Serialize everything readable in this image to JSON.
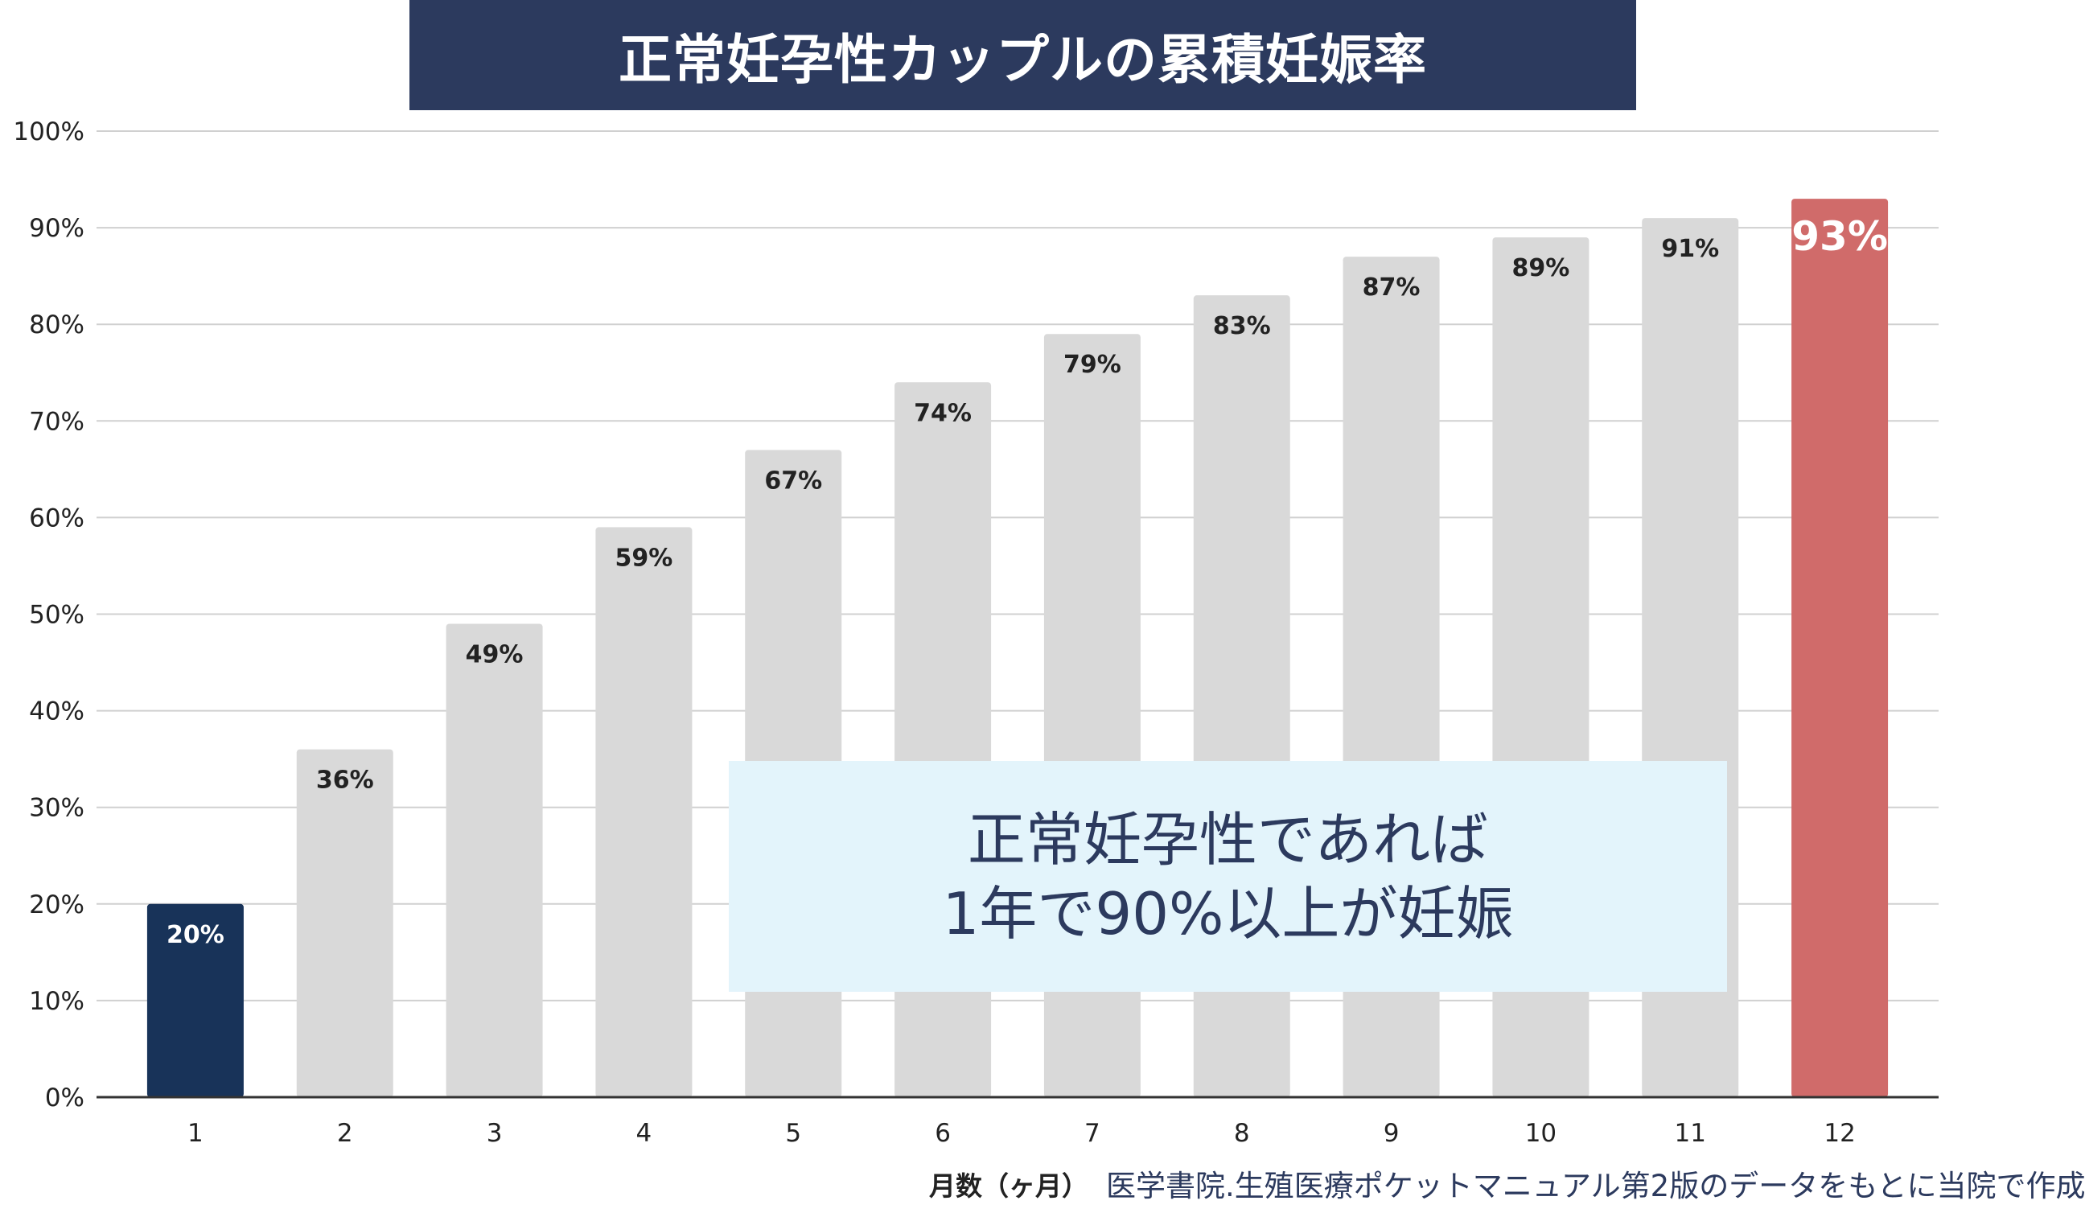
{
  "chart_data": {
    "type": "bar",
    "title": "正常妊孕性カップルの累積妊娠率",
    "categories": [
      "1",
      "2",
      "3",
      "4",
      "5",
      "6",
      "7",
      "8",
      "9",
      "10",
      "11",
      "12"
    ],
    "series": [
      {
        "values": [
          20,
          36,
          49,
          59,
          67,
          74,
          79,
          83,
          87,
          89,
          91,
          93
        ]
      }
    ],
    "data_labels": [
      "20%",
      "36%",
      "49%",
      "59%",
      "67%",
      "74%",
      "79%",
      "83%",
      "87%",
      "89%",
      "91%",
      "93%"
    ],
    "bar_colors": [
      "#183359",
      "#d9d9d9",
      "#d9d9d9",
      "#d9d9d9",
      "#d9d9d9",
      "#d9d9d9",
      "#d9d9d9",
      "#d9d9d9",
      "#d9d9d9",
      "#d9d9d9",
      "#d9d9d9",
      "#d06b6a"
    ],
    "label_colors": [
      "#ffffff",
      "#222222",
      "#222222",
      "#222222",
      "#222222",
      "#222222",
      "#222222",
      "#222222",
      "#222222",
      "#222222",
      "#222222",
      "#ffffff"
    ],
    "xlabel": "月数（ヶ月）",
    "ylabel": "",
    "ylim": [
      0,
      100
    ],
    "yticks": [
      0,
      10,
      20,
      30,
      40,
      50,
      60,
      70,
      80,
      90,
      100
    ],
    "ytick_labels": [
      "0%",
      "10%",
      "20%",
      "30%",
      "40%",
      "50%",
      "60%",
      "70%",
      "80%",
      "90%",
      "100%"
    ],
    "grid": true,
    "legend": "none"
  },
  "annotation": {
    "line1": "正常妊孕性であれば",
    "line2": "1年で90%以上が妊娠",
    "background": "#e3f4fb",
    "text_color": "#2c3a5e"
  },
  "source_note": "医学書院.生殖医療ポケットマニュアル第2版のデータをもとに当院で作成",
  "colors": {
    "title_banner": "#2c3a5e",
    "grid": "#d0d0d0",
    "axis": "#333333"
  }
}
